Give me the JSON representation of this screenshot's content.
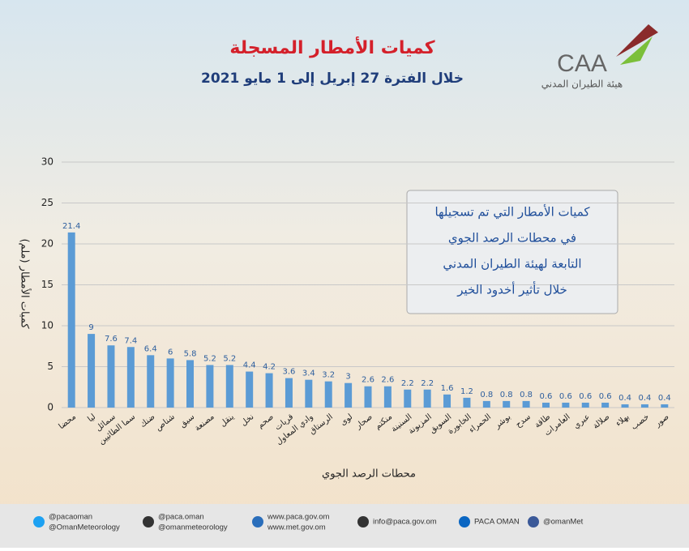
{
  "chart_data": {
    "type": "bar",
    "title": "كميات الأمطار المسجلة",
    "subtitle": "خلال الفترة 27 إبريل إلى 1 مايو 2021",
    "y_label": "كميات الأمطار (ملم)",
    "x_label": "محطات الرصد الجوي",
    "annotation": [
      "كميات الأمطار التي تم تسجيلها",
      "في محطات الرصد الجوي",
      "التابعة لهيئة الطيران المدني",
      "خلال تأثير أخدود الخير"
    ],
    "categories": [
      "محضا",
      "ليا",
      "سمائل",
      "سما الطائيين",
      "ضنك",
      "شناص",
      "سيق",
      "مصنعة",
      "ينقل",
      "نخل",
      "صحم",
      "قريات",
      "وادي المعاول",
      "الرستاق",
      "لوى",
      "صحار",
      "منكتم",
      "السنينة",
      "المزيونة",
      "السويق",
      "الخابورة",
      "الحمراء",
      "بوشر",
      "سدح",
      "طاقة",
      "العامرات",
      "عبري",
      "صلالة",
      "بهلاء",
      "خصب",
      "صور"
    ],
    "values": [
      21.4,
      9,
      7.6,
      7.4,
      6.4,
      6,
      5.8,
      5.2,
      5.2,
      4.4,
      4.2,
      3.6,
      3.4,
      3.2,
      3,
      2.6,
      2.6,
      2.2,
      2.2,
      1.6,
      1.2,
      0.8,
      0.8,
      0.8,
      0.6,
      0.6,
      0.6,
      0.6,
      0.4,
      0.4,
      0.4
    ],
    "color": "#5b9bd5",
    "ylim": [
      0,
      30
    ],
    "yticks": [
      0,
      5,
      10,
      15,
      20,
      25,
      30
    ],
    "grid": true
  },
  "logo": {
    "text": "CAA",
    "subtitle": "هيئة الطيران المدني"
  },
  "footer": [
    "@pacaoman",
    "@OmanMeteorology",
    "@paca.oman",
    "@omanmeteorology",
    "www.paca.gov.om",
    "www.met.gov.om",
    "info@paca.gov.om",
    "PACA OMAN",
    "@omanMet"
  ]
}
